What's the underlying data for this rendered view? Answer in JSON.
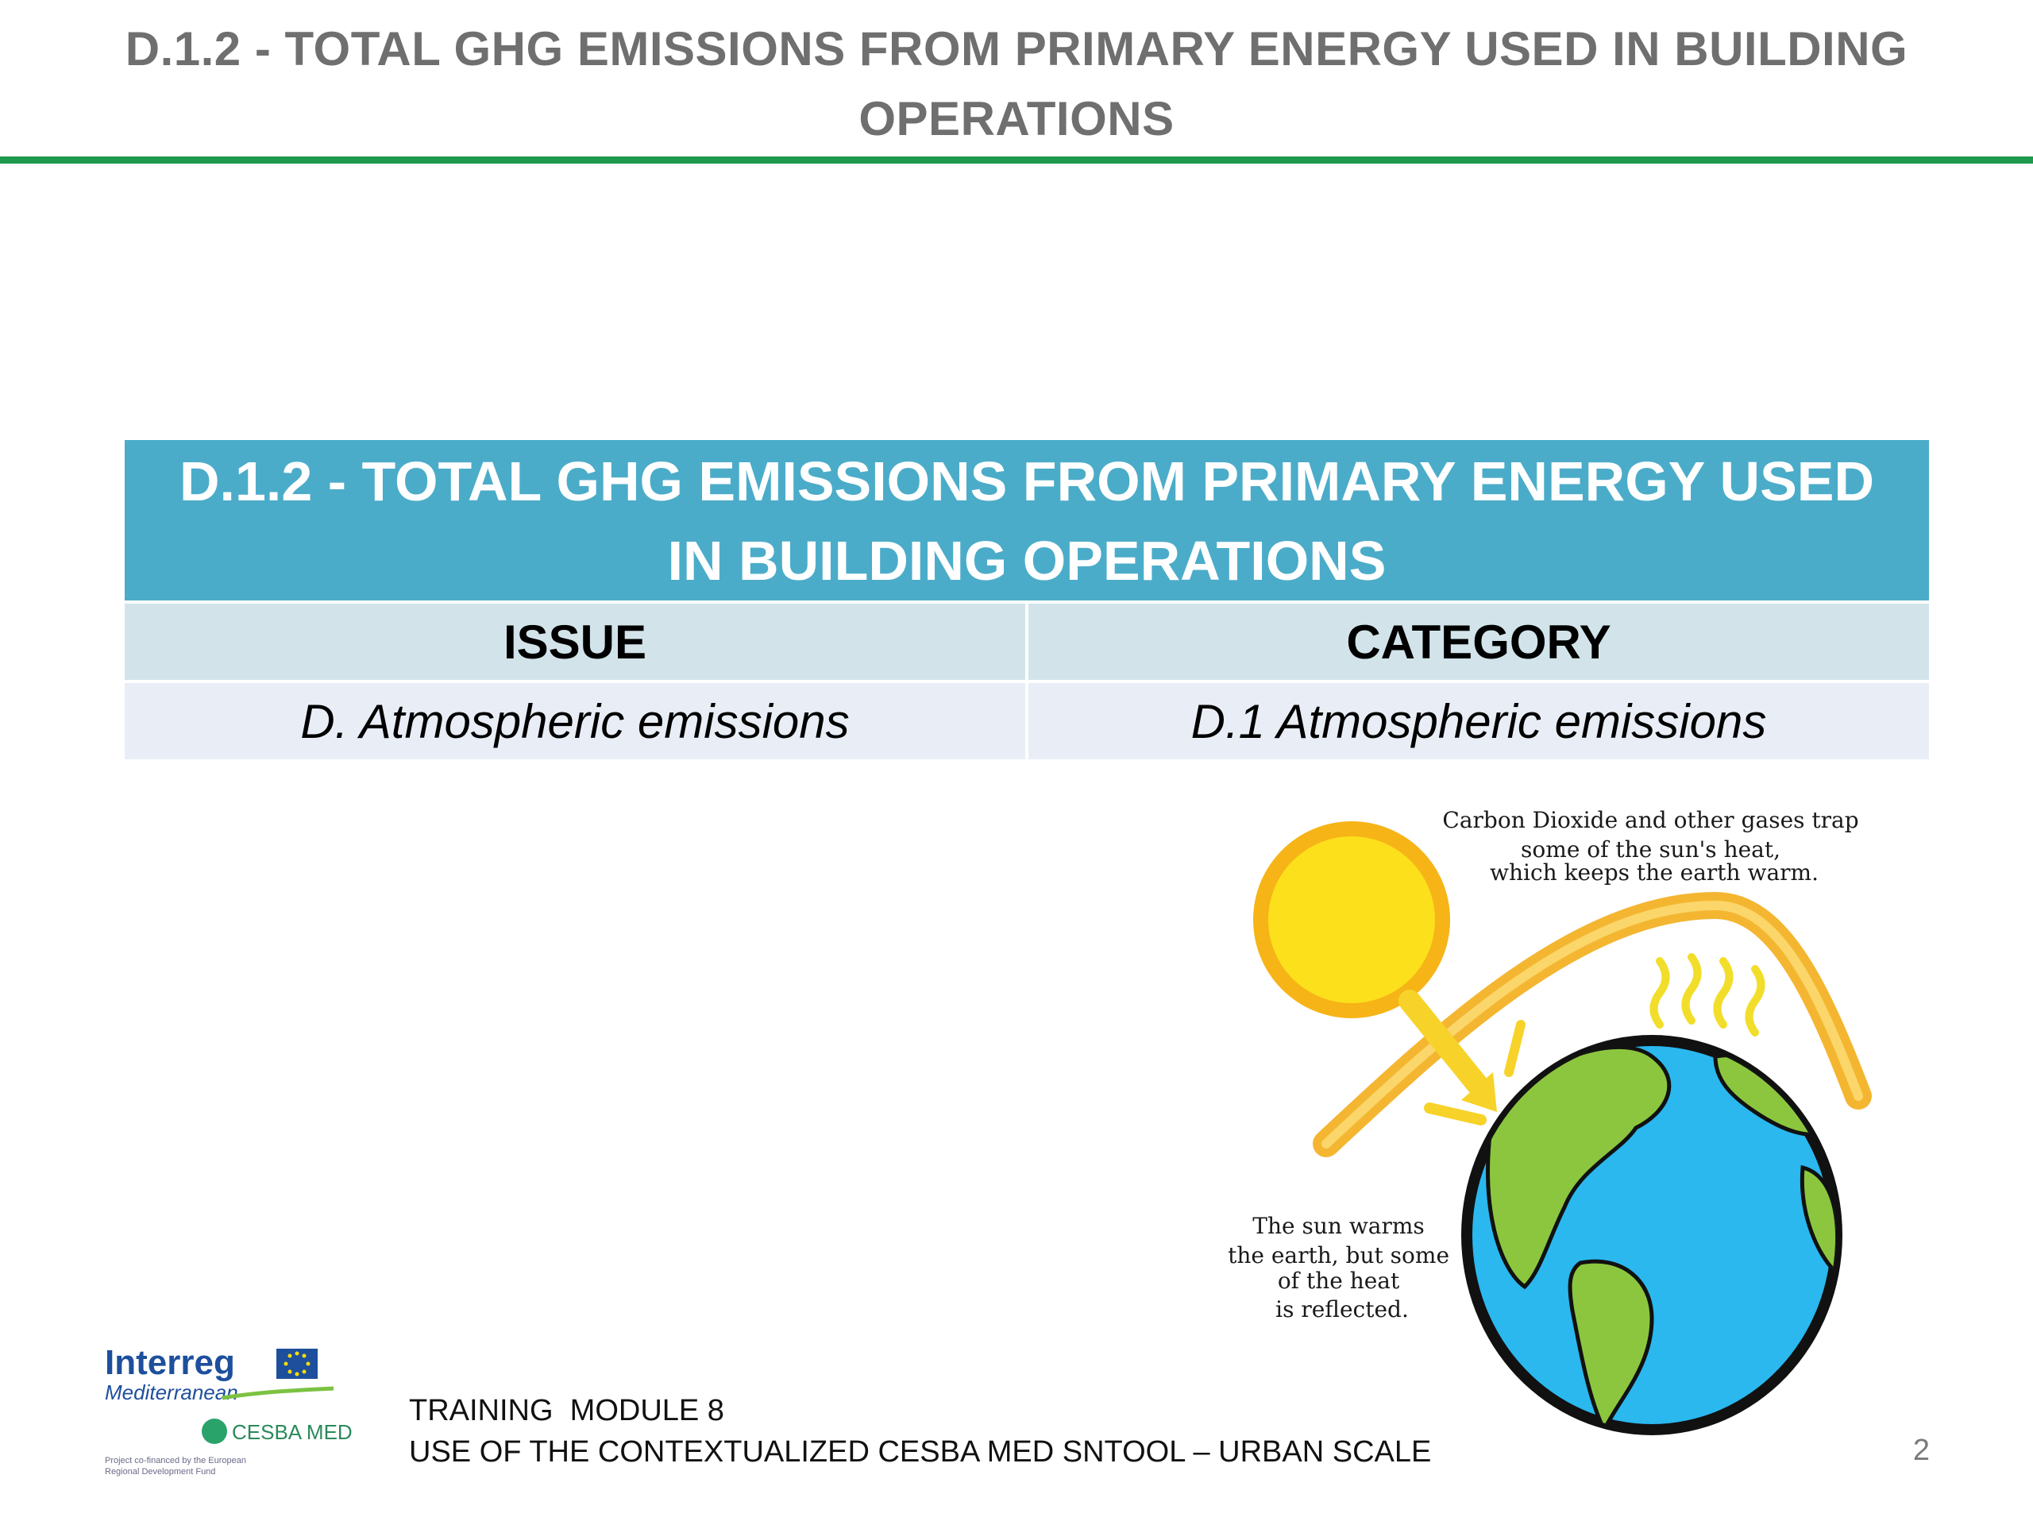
{
  "slide": {
    "title_line1": "D.1.2 - TOTAL GHG EMISSIONS FROM PRIMARY ENERGY USED IN BUILDING",
    "title_line2": "OPERATIONS"
  },
  "table": {
    "heading_line1": "D.1.2 - TOTAL GHG EMISSIONS FROM PRIMARY ENERGY USED",
    "heading_line2": "IN BUILDING OPERATIONS",
    "columns": [
      "ISSUE",
      "CATEGORY"
    ],
    "row": [
      "D. Atmospheric emissions",
      "D.1 Atmospheric emissions"
    ]
  },
  "illustration": {
    "note_top": [
      "Carbon Dioxide and other gases trap",
      "some of the sun's heat,",
      "which keeps the earth warm."
    ],
    "note_bottom": [
      "The sun warms",
      "the earth, but some",
      "of the heat",
      "is reflected."
    ]
  },
  "logos": {
    "interreg": "Interreg",
    "mediterranean": "Mediterranean",
    "cesba": "CESBA MED",
    "funding_line1": "Project co-financed by the European",
    "funding_line2": "Regional Development Fund"
  },
  "footer": {
    "line1": "TRAINING  MODULE 8",
    "line2": "USE OF THE CONTEXTUALIZED CESBA MED SNTOOL – URBAN SCALE",
    "page_number": "2"
  },
  "colors": {
    "title_text": "#6f6f6f",
    "rule": "#1f9a4c",
    "table_header": "#4bacc9",
    "col_header_bg": "#d2e4ea",
    "row_bg": "#e9eef6"
  }
}
